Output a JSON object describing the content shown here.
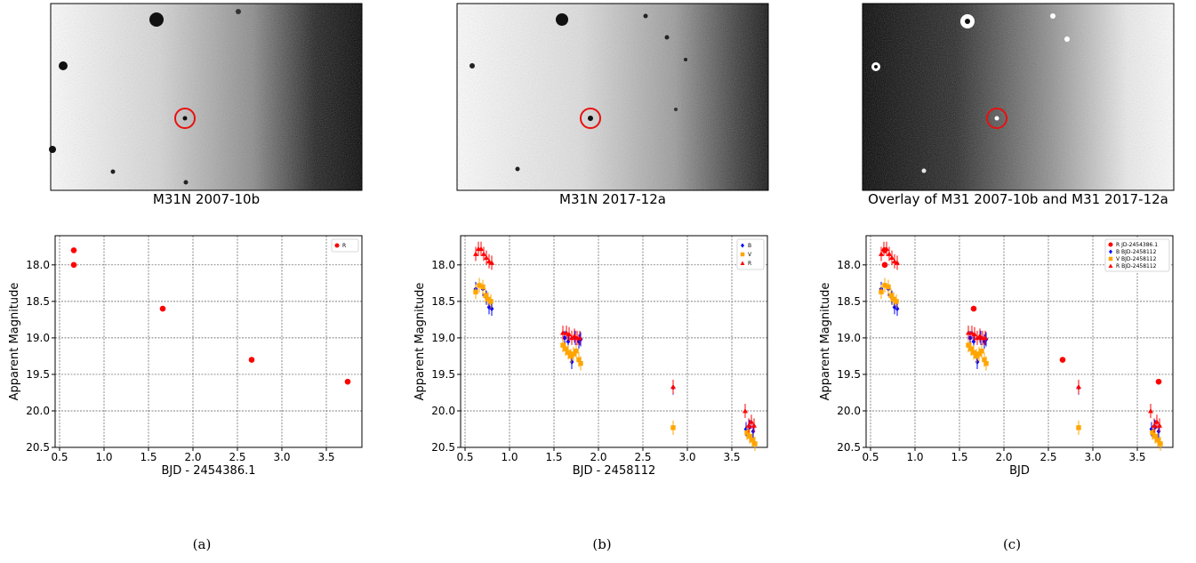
{
  "panels": [
    {
      "title": "M31N 2007-10b",
      "tag": "(a)"
    },
    {
      "title": "M31N 2017-12a",
      "tag": "(b)"
    },
    {
      "title": "Overlay of M31 2007-10b and M31 2017-12a",
      "tag": "(c)"
    }
  ],
  "colors": {
    "R": "#ff0000",
    "B": "#0000ff",
    "V": "#ffa500",
    "circle": "#e81010"
  },
  "chart_data": [
    {
      "type": "scatter",
      "xlabel": "BJD - 2454386.1",
      "ylabel": "Apparent Magnitude",
      "xlim": [
        0.45,
        3.9
      ],
      "ylim": [
        20.5,
        17.6
      ],
      "y_inverted": true,
      "grid": true,
      "xticks": [
        "0.5",
        "1.0",
        "1.5",
        "2.0",
        "2.5",
        "3.0",
        "3.5"
      ],
      "yticks": [
        "18.0",
        "18.5",
        "19.0",
        "19.5",
        "20.0",
        "20.5"
      ],
      "legend_position": "top-right",
      "series": [
        {
          "name": "R",
          "marker": "circle",
          "color": "#ff0000",
          "points": [
            [
              0.66,
              17.8
            ],
            [
              0.66,
              18.0
            ],
            [
              1.66,
              18.6
            ],
            [
              2.66,
              19.3
            ],
            [
              3.74,
              19.6
            ]
          ]
        }
      ]
    },
    {
      "type": "scatter",
      "xlabel": "BJD - 2458112",
      "ylabel": "Apparent Magnitude",
      "xlim": [
        0.45,
        3.9
      ],
      "ylim": [
        20.5,
        17.6
      ],
      "y_inverted": true,
      "grid": true,
      "xticks": [
        "0.5",
        "1.0",
        "1.5",
        "2.0",
        "2.5",
        "3.0",
        "3.5"
      ],
      "yticks": [
        "18.0",
        "18.5",
        "19.0",
        "19.5",
        "20.0",
        "20.5"
      ],
      "legend_position": "top-right",
      "series": [
        {
          "name": "B",
          "marker": "diamond",
          "color": "#0000ff",
          "points": [
            [
              0.62,
              18.33
            ],
            [
              0.66,
              18.28
            ],
            [
              0.7,
              18.33
            ],
            [
              0.74,
              18.45
            ],
            [
              0.77,
              18.58
            ],
            [
              0.8,
              18.6
            ],
            [
              1.62,
              19.0
            ],
            [
              1.66,
              19.05
            ],
            [
              1.7,
              19.33
            ],
            [
              1.74,
              19.0
            ],
            [
              1.78,
              19.05
            ],
            [
              1.8,
              19.02
            ],
            [
              2.84,
              19.68
            ],
            [
              3.66,
              20.25
            ],
            [
              3.7,
              20.22
            ],
            [
              3.74,
              20.28
            ]
          ]
        },
        {
          "name": "V",
          "marker": "square",
          "color": "#ffa500",
          "points": [
            [
              0.62,
              18.37
            ],
            [
              0.66,
              18.28
            ],
            [
              0.7,
              18.3
            ],
            [
              0.73,
              18.42
            ],
            [
              0.76,
              18.47
            ],
            [
              0.79,
              18.5
            ],
            [
              1.6,
              19.1
            ],
            [
              1.63,
              19.15
            ],
            [
              1.66,
              19.2
            ],
            [
              1.69,
              19.25
            ],
            [
              1.72,
              19.22
            ],
            [
              1.75,
              19.18
            ],
            [
              1.78,
              19.3
            ],
            [
              1.8,
              19.35
            ],
            [
              2.84,
              20.23
            ],
            [
              3.67,
              20.3
            ],
            [
              3.7,
              20.35
            ],
            [
              3.73,
              20.4
            ],
            [
              3.76,
              20.45
            ]
          ]
        },
        {
          "name": "R",
          "marker": "triangle",
          "color": "#ff0000",
          "points": [
            [
              0.62,
              17.85
            ],
            [
              0.65,
              17.78
            ],
            [
              0.68,
              17.78
            ],
            [
              0.71,
              17.85
            ],
            [
              0.74,
              17.9
            ],
            [
              0.77,
              17.95
            ],
            [
              0.8,
              17.97
            ],
            [
              1.6,
              18.93
            ],
            [
              1.64,
              18.93
            ],
            [
              1.67,
              18.95
            ],
            [
              1.7,
              19.0
            ],
            [
              1.73,
              18.97
            ],
            [
              1.76,
              19.0
            ],
            [
              1.79,
              19.0
            ],
            [
              2.84,
              19.67
            ],
            [
              3.65,
              20.0
            ],
            [
              3.69,
              20.2
            ],
            [
              3.72,
              20.15
            ],
            [
              3.75,
              20.2
            ]
          ]
        }
      ]
    },
    {
      "type": "scatter",
      "xlabel": "BJD",
      "ylabel": "Apparent Magnitude",
      "xlim": [
        0.45,
        3.9
      ],
      "ylim": [
        20.5,
        17.6
      ],
      "y_inverted": true,
      "grid": true,
      "xticks": [
        "0.5",
        "1.0",
        "1.5",
        "2.0",
        "2.5",
        "3.0",
        "3.5"
      ],
      "yticks": [
        "18.0",
        "18.5",
        "19.0",
        "19.5",
        "20.0",
        "20.5"
      ],
      "legend_position": "top-right",
      "series": [
        {
          "name": "R JD-2454386.1",
          "marker": "circle",
          "color": "#ff0000",
          "points": [
            [
              0.66,
              17.8
            ],
            [
              0.66,
              18.0
            ],
            [
              1.66,
              18.6
            ],
            [
              2.66,
              19.3
            ],
            [
              3.74,
              19.6
            ]
          ]
        },
        {
          "name": "B BJD-2458112",
          "marker": "diamond",
          "color": "#0000ff",
          "points": [
            [
              0.62,
              18.33
            ],
            [
              0.66,
              18.28
            ],
            [
              0.7,
              18.33
            ],
            [
              0.74,
              18.45
            ],
            [
              0.77,
              18.58
            ],
            [
              0.8,
              18.6
            ],
            [
              1.62,
              19.0
            ],
            [
              1.66,
              19.05
            ],
            [
              1.7,
              19.33
            ],
            [
              1.74,
              19.0
            ],
            [
              1.78,
              19.05
            ],
            [
              1.8,
              19.02
            ],
            [
              2.84,
              19.68
            ],
            [
              3.66,
              20.25
            ],
            [
              3.7,
              20.22
            ],
            [
              3.74,
              20.28
            ]
          ]
        },
        {
          "name": "V BJD-2458112",
          "marker": "square",
          "color": "#ffa500",
          "points": [
            [
              0.62,
              18.37
            ],
            [
              0.66,
              18.28
            ],
            [
              0.7,
              18.3
            ],
            [
              0.73,
              18.42
            ],
            [
              0.76,
              18.47
            ],
            [
              0.79,
              18.5
            ],
            [
              1.6,
              19.1
            ],
            [
              1.63,
              19.15
            ],
            [
              1.66,
              19.2
            ],
            [
              1.69,
              19.25
            ],
            [
              1.72,
              19.22
            ],
            [
              1.75,
              19.18
            ],
            [
              1.78,
              19.3
            ],
            [
              1.8,
              19.35
            ],
            [
              2.84,
              20.23
            ],
            [
              3.67,
              20.3
            ],
            [
              3.7,
              20.35
            ],
            [
              3.73,
              20.4
            ],
            [
              3.76,
              20.45
            ]
          ]
        },
        {
          "name": "R BJD-2458112",
          "marker": "triangle",
          "color": "#ff0000",
          "points": [
            [
              0.62,
              17.85
            ],
            [
              0.65,
              17.78
            ],
            [
              0.68,
              17.78
            ],
            [
              0.71,
              17.85
            ],
            [
              0.74,
              17.9
            ],
            [
              0.77,
              17.95
            ],
            [
              0.8,
              17.97
            ],
            [
              1.6,
              18.93
            ],
            [
              1.64,
              18.93
            ],
            [
              1.67,
              18.95
            ],
            [
              1.7,
              19.0
            ],
            [
              1.73,
              18.97
            ],
            [
              1.76,
              19.0
            ],
            [
              1.79,
              19.0
            ],
            [
              2.84,
              19.67
            ],
            [
              3.65,
              20.0
            ],
            [
              3.69,
              20.2
            ],
            [
              3.72,
              20.15
            ],
            [
              3.75,
              20.2
            ]
          ]
        }
      ]
    }
  ]
}
